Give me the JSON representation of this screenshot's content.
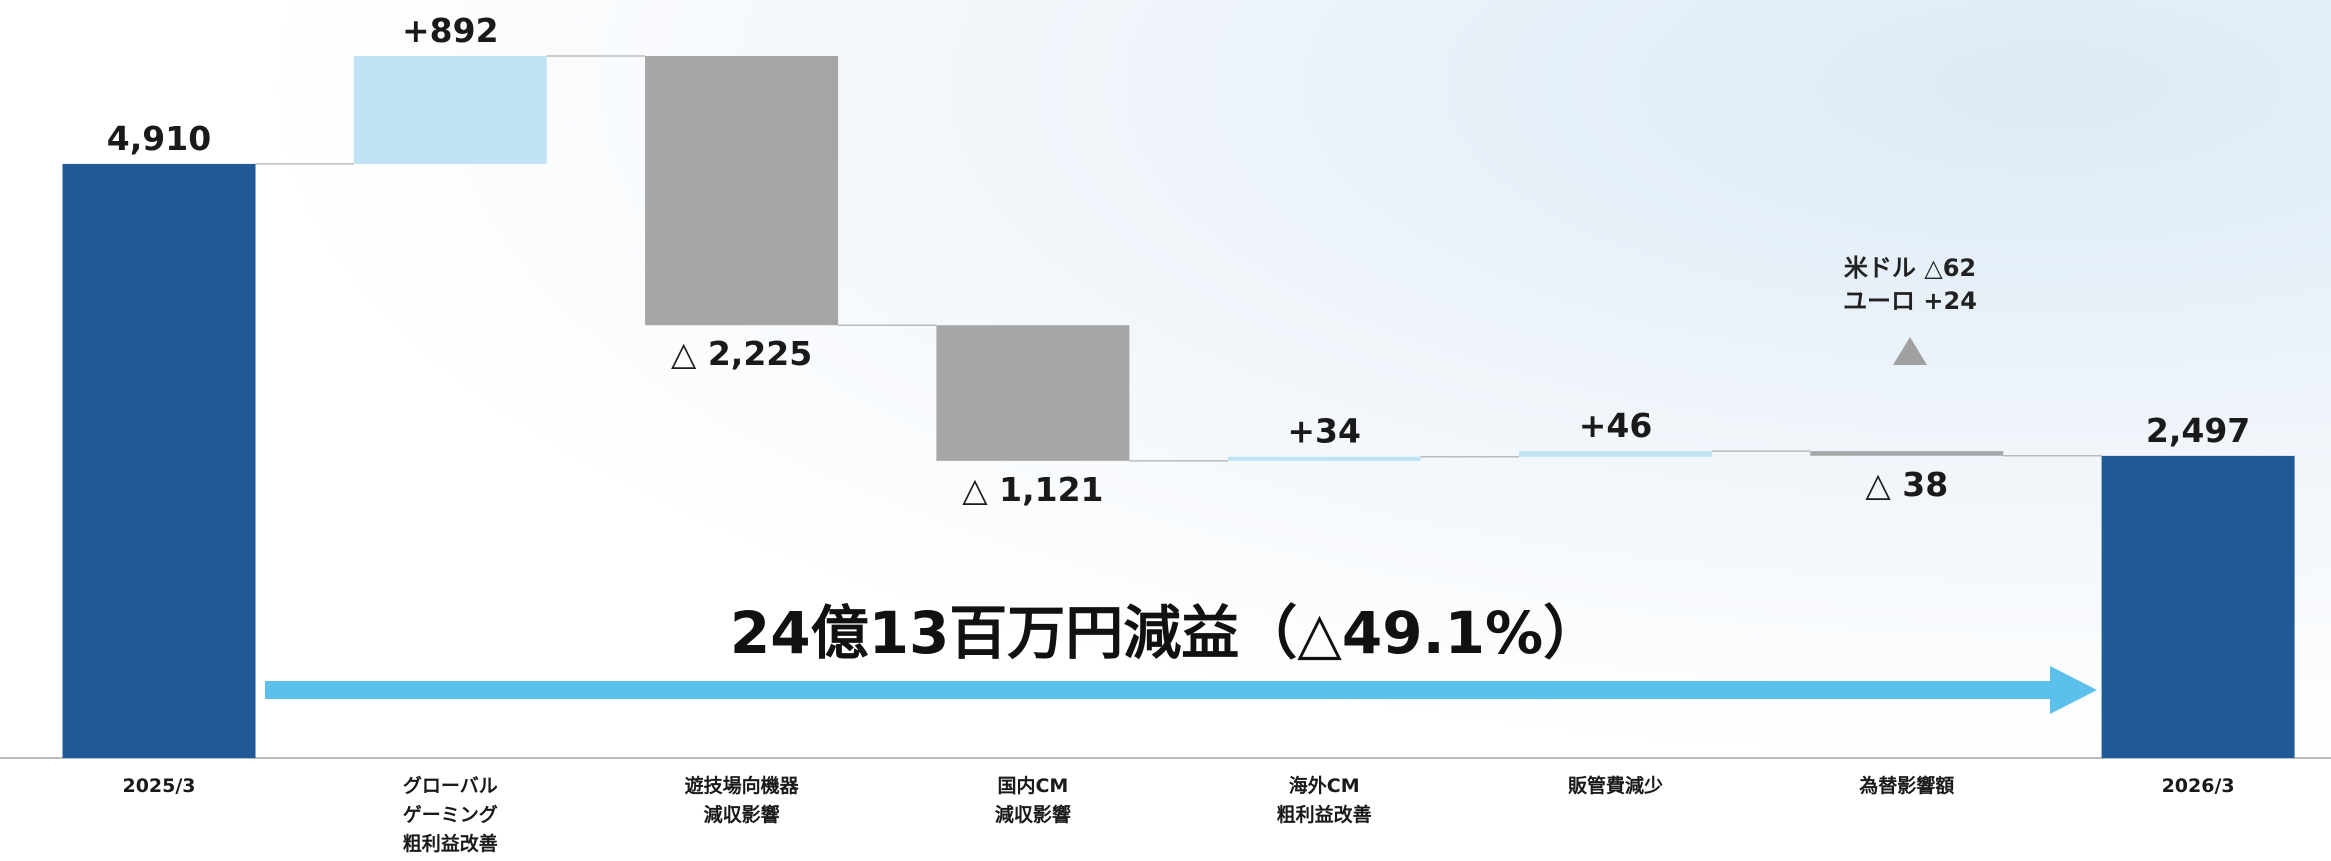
{
  "chart_data": {
    "type": "waterfall",
    "title": "24億13百万円減益（△49.1%）",
    "annotation": "米ドル △62\nユーロ  +24",
    "categories": [
      "2025/3",
      "グローバル\nゲーミング\n粗利益改善",
      "遊技場向機器\n減収影響",
      "国内CM\n減収影響",
      "海外CM\n粗利益改善",
      "販管費減少",
      "為替影響額",
      "2026/3"
    ],
    "values": [
      4910,
      892,
      -2225,
      -1121,
      34,
      46,
      -38,
      2497
    ],
    "value_labels": [
      "4,910",
      "+892",
      "△ 2,225",
      "△ 1,121",
      "+34",
      "+46",
      "△ 38",
      "2,497"
    ],
    "measures": [
      "absolute",
      "relative",
      "relative",
      "relative",
      "relative",
      "relative",
      "relative",
      "absolute"
    ],
    "colors": {
      "total": "#1f5a96",
      "increase": "#bfe3f5",
      "decrease": "#a6a6a6"
    }
  }
}
